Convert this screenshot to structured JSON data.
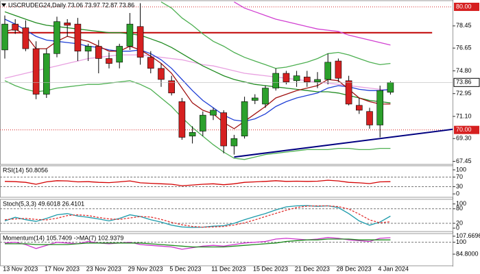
{
  "chart_data": [
    {
      "type": "candlestick",
      "title": "USCRUDEG24,Daily 73.06 73.97 72.87 73.86",
      "categories": [
        null,
        "13 Nov 2023",
        null,
        null,
        null,
        "17 Nov 2023",
        null,
        null,
        null,
        "23 Nov 2023",
        null,
        null,
        null,
        "29 Nov 2023",
        null,
        null,
        null,
        "5 Dec 2023",
        null,
        null,
        null,
        "11 Dec 2023",
        null,
        null,
        null,
        "15 Dec 2023",
        null,
        null,
        null,
        "21 Dec 2023",
        null,
        null,
        null,
        "28 Dec 2023",
        null,
        null,
        null,
        "4 Jan 2024"
      ],
      "open": [
        76.5,
        78.6,
        78.3,
        76.6,
        72.9,
        76.2,
        78.7,
        78.6,
        76.4,
        76.8,
        75.8,
        75.5,
        76.8,
        78.4,
        75.9,
        75.0,
        74.0,
        72.3,
        69.5,
        69.9,
        71.2,
        71.4,
        68.7,
        69.5,
        72.4,
        72.1,
        73.4,
        74.6,
        74.0,
        74.3,
        73.9,
        74.1,
        75.6,
        74.0,
        72.0,
        71.5,
        70.4,
        73.06
      ],
      "high": [
        79.3,
        79.0,
        78.9,
        77.2,
        76.6,
        79.2,
        79.0,
        79.1,
        77.0,
        77.3,
        76.3,
        77.0,
        79.5,
        80.3,
        76.4,
        75.4,
        74.4,
        72.6,
        70.3,
        71.5,
        71.8,
        71.6,
        69.6,
        72.7,
        72.9,
        73.6,
        75.0,
        74.8,
        74.8,
        74.8,
        74.7,
        76.2,
        75.8,
        74.4,
        72.6,
        71.8,
        73.6,
        73.97
      ],
      "low": [
        75.8,
        77.8,
        76.4,
        72.5,
        72.6,
        75.9,
        77.6,
        75.6,
        75.6,
        74.6,
        75.0,
        75.0,
        76.5,
        75.3,
        74.6,
        73.5,
        72.8,
        69.2,
        68.9,
        69.5,
        70.8,
        68.1,
        68.0,
        69.3,
        72.1,
        71.8,
        73.2,
        73.7,
        73.5,
        73.5,
        73.4,
        73.7,
        73.9,
        72.0,
        71.3,
        70.1,
        69.4,
        72.87
      ],
      "close": [
        78.6,
        78.1,
        76.6,
        72.9,
        76.2,
        78.8,
        78.5,
        76.4,
        76.8,
        75.8,
        75.4,
        76.8,
        78.6,
        75.9,
        75.0,
        74.1,
        73.0,
        69.4,
        69.8,
        71.2,
        71.6,
        68.7,
        69.3,
        72.3,
        72.6,
        73.4,
        74.6,
        73.9,
        74.4,
        73.9,
        74.1,
        75.5,
        74.2,
        72.1,
        71.6,
        70.4,
        73.2,
        73.86
      ],
      "up_color": "#2ca02c",
      "down_color": "#d62020",
      "series": [
        {
          "color": "#e8a0e0",
          "values": [
            74.2,
            74.4,
            74.6,
            74.8,
            75.0,
            75.2,
            75.4,
            75.6,
            75.8,
            75.9,
            76.0,
            76.1,
            76.1,
            76.1,
            76.0,
            75.9,
            75.8,
            75.7,
            75.5,
            75.3,
            75.2,
            75.0,
            74.8,
            74.6,
            74.5,
            74.4,
            74.3,
            74.2,
            74.1,
            74.0,
            73.9,
            73.8,
            73.7,
            73.6,
            73.5,
            73.4,
            73.3,
            73.2
          ]
        },
        {
          "color": "#d13fd1",
          "values": [
            null,
            null,
            null,
            null,
            null,
            null,
            null,
            null,
            null,
            null,
            null,
            null,
            null,
            null,
            null,
            null,
            null,
            null,
            null,
            null,
            null,
            null,
            80.4,
            79.9,
            79.6,
            79.3,
            79.0,
            78.8,
            78.6,
            78.4,
            78.2,
            78.1,
            78.0,
            77.7,
            77.5,
            77.3,
            77.1,
            76.9
          ]
        },
        {
          "color": "#4caf50",
          "values": [
            null,
            null,
            null,
            null,
            null,
            null,
            null,
            null,
            null,
            null,
            null,
            null,
            null,
            null,
            null,
            80.4,
            79.9,
            79.1,
            78.5,
            77.8,
            77.2,
            76.8,
            76.3,
            75.9,
            75.6,
            75.3,
            75.0,
            75.1,
            75.3,
            75.5,
            75.8,
            76.2,
            76.3,
            76.1,
            75.8,
            75.5,
            75.3,
            75.4
          ]
        },
        {
          "color": "#4caf50",
          "values": [
            74.0,
            73.6,
            73.3,
            73.1,
            73.2,
            73.4,
            73.5,
            73.6,
            73.7,
            73.7,
            73.8,
            73.9,
            74.0,
            73.7,
            73.3,
            72.6,
            71.9,
            71.0,
            70.2,
            69.5,
            68.8,
            68.2,
            67.7,
            67.6,
            67.8,
            68.0,
            68.1,
            68.2,
            68.3,
            68.4,
            68.4,
            68.4,
            68.5,
            68.5,
            68.4,
            68.4,
            68.5,
            68.5
          ]
        },
        {
          "color": "#1f8a1f",
          "values": [
            79.6,
            79.3,
            79.0,
            78.7,
            78.5,
            78.4,
            78.3,
            78.2,
            78.1,
            78.0,
            77.9,
            77.9,
            77.8,
            77.7,
            77.4,
            77.1,
            76.7,
            76.2,
            75.7,
            75.2,
            74.8,
            74.4,
            74.1,
            73.9,
            73.7,
            73.6,
            73.5,
            73.4,
            73.3,
            73.2,
            73.1,
            73.1,
            73.0,
            72.8,
            72.6,
            72.4,
            72.3,
            72.2
          ]
        },
        {
          "color": "#1f3fd6",
          "values": [
            79.0,
            78.6,
            78.1,
            77.6,
            77.3,
            77.2,
            77.1,
            77.0,
            76.8,
            76.7,
            76.5,
            76.4,
            76.4,
            76.5,
            76.2,
            75.7,
            75.0,
            74.1,
            73.2,
            72.4,
            71.8,
            71.2,
            70.8,
            70.7,
            70.9,
            71.3,
            71.9,
            72.3,
            72.6,
            72.8,
            73.0,
            73.4,
            73.6,
            73.5,
            73.3,
            73.2,
            73.2,
            73.3
          ]
        },
        {
          "color": "#a01010",
          "values": [
            78.0,
            78.2,
            77.7,
            76.6,
            76.6,
            77.2,
            77.6,
            77.4,
            77.2,
            76.8,
            76.4,
            76.4,
            76.8,
            76.5,
            76.0,
            75.4,
            74.6,
            73.4,
            72.2,
            71.6,
            71.3,
            70.6,
            70.1,
            70.7,
            71.3,
            71.9,
            72.6,
            72.9,
            73.2,
            73.4,
            73.6,
            74.1,
            74.0,
            73.3,
            72.6,
            72.3,
            72.1,
            72.1
          ]
        }
      ],
      "trendlines": [
        {
          "color": "#c00000",
          "start": [
            0,
            77.9
          ],
          "end": [
            41,
            77.9
          ]
        },
        {
          "color": "#000080",
          "start": [
            22,
            67.8
          ],
          "end": [
            43.4,
            70.05
          ]
        }
      ],
      "levels": [
        {
          "value": 80,
          "label": "80.00",
          "color": "#d62020"
        },
        {
          "value": 70,
          "label": "70.00",
          "color": "#d62020"
        }
      ],
      "last_price": 73.86,
      "ylim": [
        67.2,
        80.5
      ],
      "yticks": [
        78.45,
        76.65,
        {
          "value": 74.8,
          "label": "74.80"
        },
        72.95,
        {
          "value": 71.1,
          "label": "71.10"
        },
        {
          "value": 69.3,
          "label": "69.30"
        },
        67.45
      ]
    },
    {
      "type": "line",
      "title": "RSI(14) 50.8056",
      "series": [
        {
          "color": "#d40000",
          "values": [
            52,
            51,
            48,
            40,
            50,
            55,
            54,
            50,
            51,
            48,
            47,
            50,
            54,
            46,
            44,
            42,
            40,
            34,
            37,
            40,
            42,
            38,
            42,
            48,
            50,
            52,
            55,
            52,
            53,
            52,
            53,
            57,
            54,
            48,
            46,
            43,
            50,
            50.8056
          ]
        }
      ],
      "levels": [
        70,
        30
      ],
      "ylim": [
        -14,
        117
      ],
      "yticks": [
        100,
        70,
        30,
        0
      ]
    },
    {
      "type": "line",
      "title": "Stoch(5,3,3) 49.6018 26.4101",
      "series": [
        {
          "color": "#1a9aaa",
          "values": [
            30,
            45,
            35,
            28,
            40,
            55,
            60,
            50,
            45,
            38,
            30,
            40,
            55,
            48,
            35,
            25,
            12,
            5,
            3,
            4,
            8,
            10,
            20,
            35,
            48,
            60,
            75,
            88,
            92,
            93,
            90,
            92,
            85,
            60,
            30,
            12,
            25,
            49.6018
          ]
        },
        {
          "color": "#e03030",
          "dash": true,
          "values": [
            35,
            38,
            40,
            36,
            34,
            41,
            52,
            55,
            52,
            44,
            38,
            36,
            42,
            48,
            46,
            36,
            24,
            14,
            7,
            4,
            5,
            7,
            13,
            22,
            34,
            48,
            61,
            74,
            85,
            91,
            92,
            92,
            89,
            79,
            58,
            34,
            22,
            26.4101
          ]
        }
      ],
      "levels": [
        80,
        20
      ],
      "ylim": [
        -14,
        119
      ],
      "yticks": [
        100,
        80,
        20,
        0
      ]
    },
    {
      "type": "line",
      "title": "Momentum(14) 105.7409 ->MA(7) 102.9379",
      "series": [
        {
          "color": "#cc33cc",
          "values": [
            99,
            100,
            97,
            92,
            96,
            100,
            99,
            98,
            101,
            99,
            98,
            99,
            100,
            97,
            96,
            95,
            94,
            91,
            93,
            95,
            96,
            95,
            97,
            99,
            100,
            101,
            104,
            105,
            104,
            103,
            104,
            106,
            105,
            103,
            102,
            101,
            105,
            105.7409
          ]
        },
        {
          "color": "#1a8a1a",
          "values": [
            98,
            98,
            98,
            97,
            97,
            97,
            97,
            98,
            99,
            99,
            99,
            99,
            99,
            99,
            98,
            97,
            96,
            95,
            94,
            94,
            94,
            94,
            95,
            96,
            97,
            98,
            99,
            101,
            102,
            103,
            103,
            104,
            104,
            104,
            103,
            103,
            103,
            102.9379
          ]
        }
      ],
      "levels": [
        100
      ],
      "ylim": [
        70,
        111
      ],
      "yticks": [
        107.6696,
        100,
        {
          "value": 84.8,
          "label": "84.8000"
        }
      ]
    }
  ]
}
